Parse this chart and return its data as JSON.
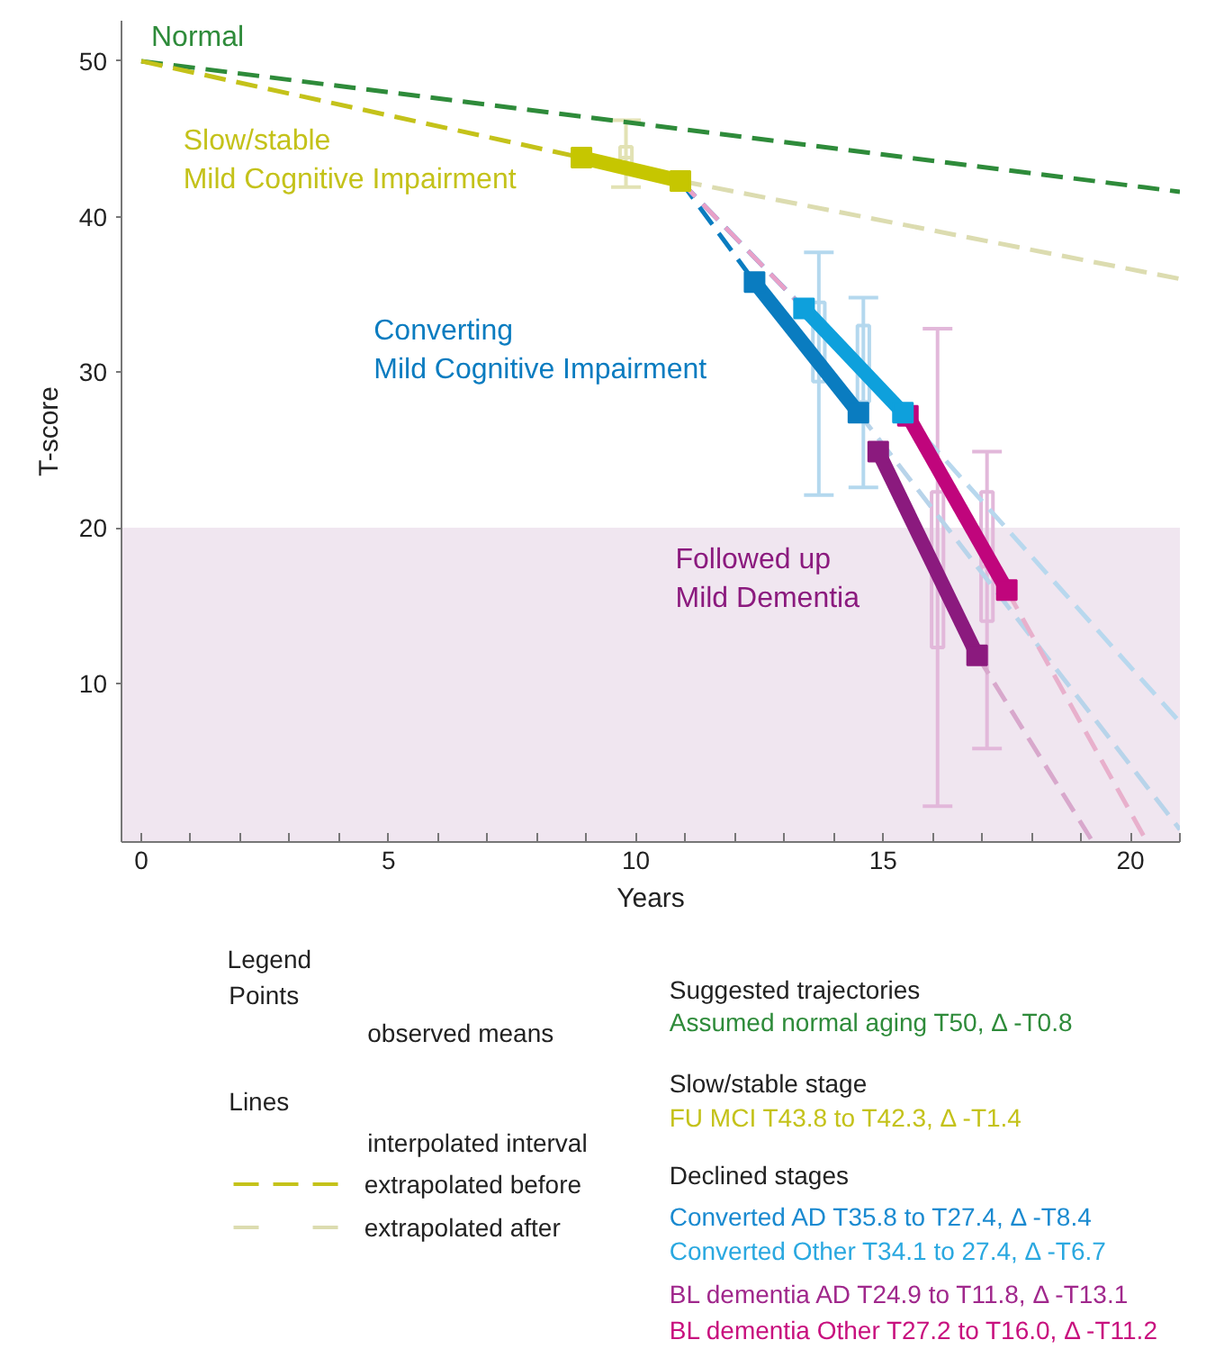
{
  "chart_data": {
    "type": "line",
    "xlabel": "Years",
    "ylabel": "T-score",
    "xlim": [
      -0.4,
      21
    ],
    "ylim": [
      -0.2,
      52.6
    ],
    "xticks": [
      0,
      {
        "value": 1,
        "label": null
      },
      {
        "value": 2,
        "label": null
      },
      {
        "value": 3,
        "label": null
      },
      {
        "value": 4,
        "label": null
      },
      5,
      {
        "value": 6,
        "label": null
      },
      {
        "value": 7,
        "label": null
      },
      {
        "value": 8,
        "label": null
      },
      {
        "value": 9,
        "label": null
      },
      10,
      {
        "value": 11,
        "label": null
      },
      {
        "value": 12,
        "label": null
      },
      {
        "value": 13,
        "label": null
      },
      {
        "value": 14,
        "label": null
      },
      15,
      {
        "value": 16,
        "label": null
      },
      {
        "value": 17,
        "label": null
      },
      {
        "value": 18,
        "label": null
      },
      {
        "value": 19,
        "label": null
      },
      20,
      {
        "value": 21,
        "label": null
      }
    ],
    "yticks": [
      10,
      20,
      30,
      40,
      50
    ],
    "grid": false,
    "bands": [
      {
        "axis": "y",
        "from": -0.2,
        "to": 20,
        "color": "#f0e6f0"
      }
    ],
    "series": [
      {
        "type": "box",
        "color": "#e2e2b4",
        "x": [
          9.8
        ],
        "boxes": [
          {
            "low": 41.9,
            "q1": 43.2,
            "median": 43.8,
            "q3": 44.5,
            "high": 46.2
          }
        ]
      },
      {
        "type": "box",
        "color": "#b4d8ee",
        "x": [
          13.7,
          14.6
        ],
        "boxes": [
          {
            "low": 22.1,
            "q1": 29.4,
            "median": 30.7,
            "q3": 34.5,
            "high": 37.7
          },
          {
            "low": 22.6,
            "q1": 28.1,
            "median": 30.2,
            "q3": 33.0,
            "high": 34.8
          }
        ]
      },
      {
        "type": "box",
        "color": "#e2b8da",
        "x": [
          16.1,
          17.1
        ],
        "boxes": [
          {
            "low": 2.1,
            "q1": 12.3,
            "median": 16.7,
            "q3": 22.3,
            "high": 32.8
          },
          {
            "low": 5.8,
            "q1": 14.0,
            "median": 17.5,
            "q3": 22.3,
            "high": 24.9
          }
        ]
      },
      {
        "color": "#2e8b3a",
        "line_style": "dashed",
        "x": [
          0,
          21
        ],
        "values": [
          50,
          41.6
        ]
      },
      {
        "color": "#c4c21a",
        "line_style": "dashed",
        "x": [
          0,
          8.9
        ],
        "values": [
          50,
          43.8
        ]
      },
      {
        "color": "#dcdcb0",
        "line_style": "dashed",
        "x": [
          10.9,
          21
        ],
        "values": [
          42.3,
          36.0
        ]
      },
      {
        "color": "#0a7cc0",
        "line_style": "dashed",
        "x": [
          10.9,
          12.4
        ],
        "values": [
          42.3,
          35.8
        ]
      },
      {
        "color": "#0ea0dc",
        "line_style": "dashed",
        "x": [
          10.9,
          13.4
        ],
        "values": [
          42.3,
          34.1
        ]
      },
      {
        "color": "#e8a0c8",
        "line_style": "dashed",
        "x": [
          10.9,
          15.5
        ],
        "values": [
          42.3,
          27.2
        ]
      },
      {
        "color": "#b8d4ea",
        "line_style": "dashed",
        "x": [
          14.5,
          21
        ],
        "values": [
          27.4,
          0.6
        ]
      },
      {
        "color": "#b8d8ee",
        "line_style": "dashed",
        "x": [
          15.4,
          21
        ],
        "values": [
          27.4,
          7.5
        ]
      },
      {
        "color": "#d8a8cc",
        "line_style": "dashed",
        "x": [
          16.9,
          19.2
        ],
        "values": [
          11.8,
          0
        ]
      },
      {
        "color": "#e8b0cc",
        "line_style": "dashed",
        "x": [
          17.5,
          20.3
        ],
        "values": [
          16.0,
          0
        ]
      },
      {
        "color": "#c6c600",
        "marker": "square",
        "x": [
          8.9,
          10.9
        ],
        "values": [
          43.8,
          42.3
        ]
      },
      {
        "color": "#0a7cc0",
        "marker": "square",
        "x": [
          12.4,
          14.5
        ],
        "values": [
          35.8,
          27.4
        ]
      },
      {
        "color": "#0ea0dc",
        "marker": "square",
        "x": [
          13.4,
          15.4
        ],
        "values": [
          34.1,
          27.4
        ]
      },
      {
        "color": "#8b1a7e",
        "marker": "square",
        "x": [
          14.9,
          16.9
        ],
        "values": [
          24.9,
          11.8
        ]
      },
      {
        "color": "#c0057c",
        "marker": "square",
        "x": [
          15.5,
          17.5
        ],
        "values": [
          27.2,
          16.0
        ]
      }
    ],
    "annotations": [
      "Normal",
      "Slow/stable\nMild Cognitive Impairment",
      "Converting\nMild Cognitive Impairment",
      "Followed up\nMild Dementia",
      "Legend",
      "Points",
      "observed means",
      "Lines",
      "interpolated interval",
      "extrapolated before",
      "extrapolated after",
      "Suggested trajectories",
      "Assumed normal aging T50, Δ -T0.8",
      "Slow/stable stage",
      "FU MCI T43.8 to T42.3,  Δ -T1.4",
      "Declined stages",
      "Converted AD T35.8 to T27.4,  Δ -T8.4",
      "Converted Other T34.1 to 27.4,  Δ -T6.7",
      "BL dementia AD T24.9 to T11.8,  Δ -T13.1",
      "BL dementia Other T27.2 to T16.0,  Δ -T11.2"
    ]
  }
}
